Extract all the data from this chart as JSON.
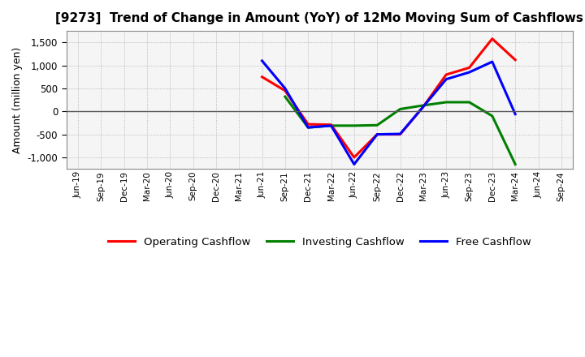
{
  "title": "[9273]  Trend of Change in Amount (YoY) of 12Mo Moving Sum of Cashflows",
  "ylabel": "Amount (million yen)",
  "x_labels": [
    "Jun-19",
    "Sep-19",
    "Dec-19",
    "Mar-20",
    "Jun-20",
    "Sep-20",
    "Dec-20",
    "Mar-21",
    "Jun-21",
    "Sep-21",
    "Dec-21",
    "Mar-22",
    "Jun-22",
    "Sep-22",
    "Dec-22",
    "Mar-23",
    "Jun-23",
    "Sep-23",
    "Dec-23",
    "Mar-24",
    "Jun-24",
    "Sep-24"
  ],
  "operating": [
    null,
    null,
    null,
    null,
    null,
    null,
    null,
    null,
    750,
    450,
    -280,
    -290,
    -1000,
    -500,
    -500,
    100,
    800,
    950,
    1580,
    1120,
    null,
    null
  ],
  "investing": [
    null,
    null,
    null,
    null,
    null,
    null,
    null,
    null,
    null,
    320,
    -350,
    -310,
    -310,
    -300,
    50,
    130,
    200,
    200,
    -100,
    -1150,
    null,
    null
  ],
  "free": [
    null,
    null,
    null,
    null,
    null,
    null,
    null,
    null,
    1100,
    500,
    -350,
    -310,
    -1150,
    -500,
    -490,
    100,
    700,
    850,
    1080,
    -60,
    null,
    null
  ],
  "operating_color": "#ff0000",
  "investing_color": "#008000",
  "free_color": "#0000ff",
  "ylim": [
    -1250,
    1750
  ],
  "yticks": [
    -1000,
    -500,
    0,
    500,
    1000,
    1500
  ],
  "background_color": "#ffffff",
  "grid_color": "#888888",
  "plot_bg_color": "#f5f5f5"
}
